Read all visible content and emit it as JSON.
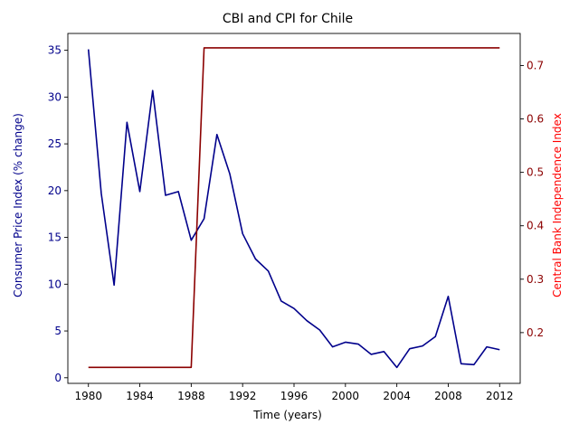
{
  "chart_data": {
    "type": "line",
    "title": "CBI and CPI for Chile",
    "xlabel": "Time (years)",
    "ylabel_left": "Consumer Price Index (% change)",
    "ylabel_right": "Central Bank Independence Index",
    "xlim": [
      1978.4,
      2013.6
    ],
    "ylim_left": [
      -0.6,
      36.8
    ],
    "ylim_right": [
      0.105,
      0.76
    ],
    "x_ticks": [
      1980,
      1984,
      1988,
      1992,
      1996,
      2000,
      2004,
      2008,
      2012
    ],
    "y_left_ticks": [
      0,
      5,
      10,
      15,
      20,
      25,
      30,
      35
    ],
    "y_right_ticks": [
      0.2,
      0.3,
      0.4,
      0.5,
      0.6,
      0.7
    ],
    "grid": false,
    "colors": {
      "left_axis": "#00008b",
      "right_axis": "#8b0000"
    },
    "series": [
      {
        "axis": "left",
        "color": "#00008b",
        "x": [
          1980,
          1981,
          1982,
          1983,
          1984,
          1985,
          1986,
          1987,
          1988,
          1989,
          1990,
          1991,
          1992,
          1993,
          1994,
          1995,
          1996,
          1997,
          1998,
          1999,
          2000,
          2001,
          2002,
          2003,
          2004,
          2005,
          2006,
          2007,
          2008,
          2009,
          2010,
          2011,
          2012
        ],
        "values": [
          35.1,
          19.7,
          9.9,
          27.3,
          19.9,
          30.7,
          19.5,
          19.9,
          14.7,
          17.0,
          26.0,
          21.8,
          15.4,
          12.7,
          11.4,
          8.2,
          7.4,
          6.1,
          5.1,
          3.3,
          3.8,
          3.6,
          2.5,
          2.8,
          1.1,
          3.1,
          3.4,
          4.4,
          8.7,
          1.5,
          1.4,
          3.3,
          3.0
        ]
      },
      {
        "axis": "right",
        "color": "#8b0000",
        "x": [
          1980,
          1981,
          1982,
          1983,
          1984,
          1985,
          1986,
          1987,
          1988,
          1989,
          1990,
          1991,
          1992,
          1993,
          1994,
          1995,
          1996,
          1997,
          1998,
          1999,
          2000,
          2001,
          2002,
          2003,
          2004,
          2005,
          2006,
          2007,
          2008,
          2009,
          2010,
          2011,
          2012
        ],
        "values": [
          0.135,
          0.135,
          0.135,
          0.135,
          0.135,
          0.135,
          0.135,
          0.135,
          0.135,
          0.733,
          0.733,
          0.733,
          0.733,
          0.733,
          0.733,
          0.733,
          0.733,
          0.733,
          0.733,
          0.733,
          0.733,
          0.733,
          0.733,
          0.733,
          0.733,
          0.733,
          0.733,
          0.733,
          0.733,
          0.733,
          0.733,
          0.733,
          0.733
        ]
      }
    ]
  }
}
